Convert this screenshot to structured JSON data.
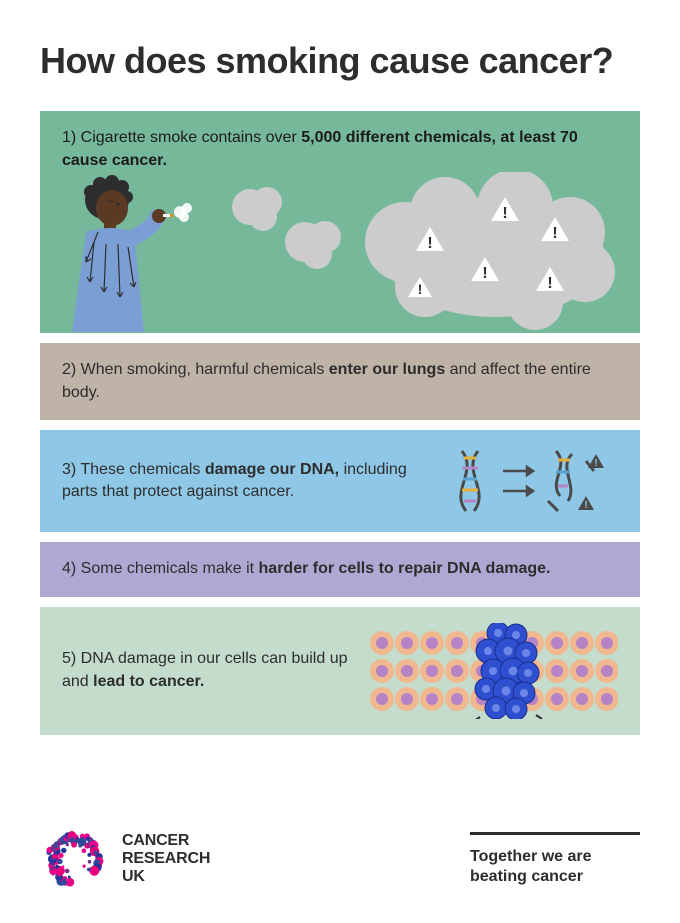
{
  "title": "How does smoking cause cancer?",
  "panels": {
    "p1": {
      "bg_color": "#76b89a",
      "text_before_bold": "1) Cigarette smoke contains over ",
      "bold": "5,000 different chemicals, at least 70 cause cancer.",
      "cloud_color": "#cccccc",
      "warning_outline": "#2d2d2d",
      "skin_color": "#5b3a23",
      "shirt_color": "#7b9fd5"
    },
    "p2": {
      "bg_color": "#bfb2a7",
      "text_before": "2)   When smoking, harmful chemicals ",
      "bold": "enter our lungs",
      "text_after": " and affect the entire body."
    },
    "p3": {
      "bg_color": "#8ec8e6",
      "text_before": "3)  These chemicals ",
      "bold": "damage our DNA,",
      "text_after_line2": " including parts that protect against cancer.",
      "dna_color": "#4a4a4a"
    },
    "p4": {
      "bg_color": "#b0a8d3",
      "text_before": "4)  Some chemicals make it ",
      "bold": "harder for cells to repair DNA damage."
    },
    "p5": {
      "bg_color": "#c4dccc",
      "text_before": "5)  DNA damage in our cells can build up and ",
      "bold": "lead to cancer.",
      "cell_normal": "#f1b88f",
      "cell_nucleus": "#b583c6",
      "cancer_cell": "#2f4fd1"
    }
  },
  "footer": {
    "logo_line1": "CANCER",
    "logo_line2": "RESEARCH",
    "logo_line3": "UK",
    "tagline_line1": "Together we are",
    "tagline_line2": "beating cancer",
    "logo_dot_colors": [
      "#ec008c",
      "#1e3799",
      "#7b2e8e",
      "#e6007e",
      "#2e4b9b"
    ]
  }
}
